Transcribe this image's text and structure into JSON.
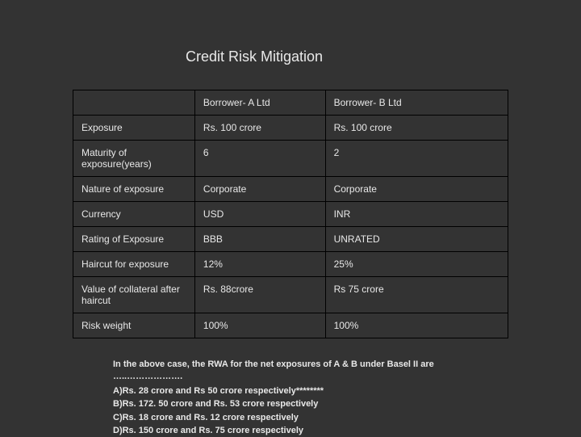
{
  "title": "Credit Risk Mitigation",
  "table": {
    "columns": [
      "",
      "Borrower- A Ltd",
      "Borrower- B Ltd"
    ],
    "rows": [
      [
        "Exposure",
        "Rs. 100 crore",
        "Rs. 100 crore"
      ],
      [
        "Maturity of exposure(years)",
        "6",
        "2"
      ],
      [
        "Nature of exposure",
        "Corporate",
        "Corporate"
      ],
      [
        "Currency",
        "USD",
        "INR"
      ],
      [
        "Rating of Exposure",
        "BBB",
        "UNRATED"
      ],
      [
        "Haircut for exposure",
        "12%",
        "25%"
      ],
      [
        "Value of collateral after haircut",
        "Rs. 88crore",
        "Rs 75 crore"
      ],
      [
        "Risk weight",
        "100%",
        "100%"
      ]
    ],
    "column_widths": [
      "28%",
      "30%",
      "42%"
    ],
    "border_color": "#000000",
    "text_color": "#e8e8e8",
    "font_size": 12
  },
  "footer": {
    "question": "In the above case, the RWA for the net exposures of A & B under Basel II    are …..……………….",
    "options": [
      "A)Rs. 28 crore and Rs 50 crore respectively********",
      "B)Rs. 172. 50 crore  and Rs. 53 crore respectively",
      "C)Rs. 18 crore and Rs. 12 crore  respectively",
      "D)Rs. 150 crore  and Rs. 75 crore  respectively"
    ],
    "font_size": 11,
    "font_weight": "bold",
    "text_color": "#e8e8e8"
  },
  "background_color": "#333333"
}
